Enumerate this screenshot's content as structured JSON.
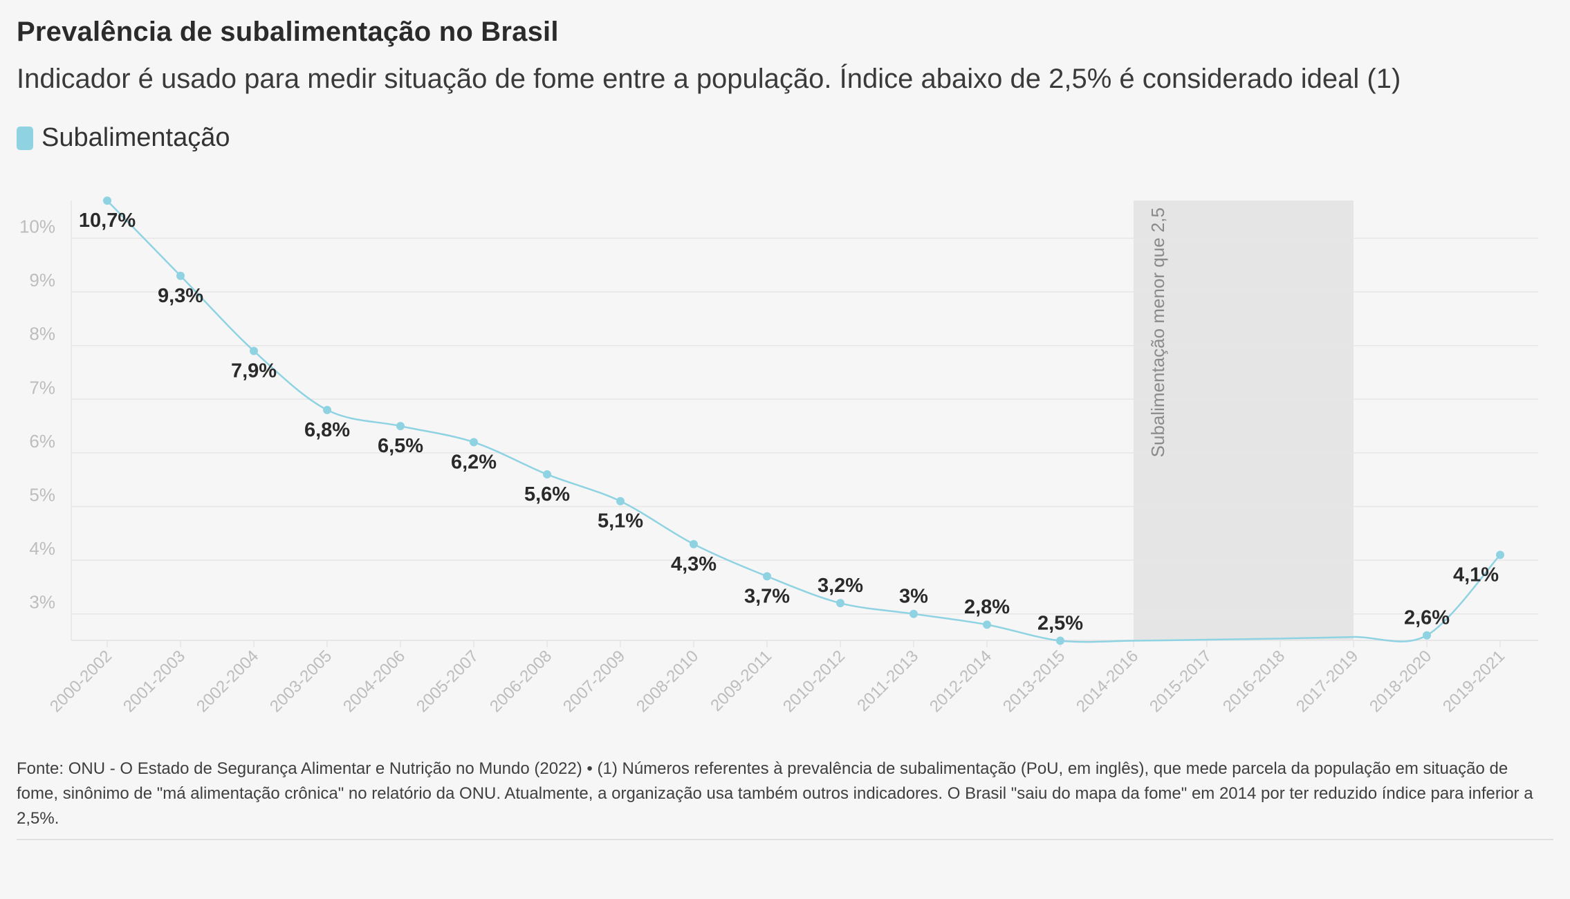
{
  "header": {
    "title": "Prevalência de subalimentação no Brasil",
    "subtitle": "Indicador é usado para medir situação de fome entre a população. Índice abaixo de 2,5% é considerado ideal (1)"
  },
  "colors": {
    "series": "#8fd3e3",
    "band": "#e5e5e5",
    "grid": "#e6e6e6",
    "tick": "#bdbdbd",
    "label": "#2a2a2a"
  },
  "chart_data": {
    "type": "line",
    "title": "Prevalência de subalimentação no Brasil",
    "subtitle": "Indicador é usado para medir situação de fome entre a população. Índice abaixo de 2,5% é considerado ideal (1)",
    "xlabel": "",
    "ylabel": "",
    "categories": [
      "2000-2002",
      "2001-2003",
      "2002-2004",
      "2003-2005",
      "2004-2006",
      "2005-2007",
      "2006-2008",
      "2007-2009",
      "2008-2010",
      "2009-2011",
      "2010-2012",
      "2011-2013",
      "2012-2014",
      "2013-2015",
      "2014-2016",
      "2015-2017",
      "2016-2018",
      "2017-2019",
      "2018-2020",
      "2019-2021"
    ],
    "series": [
      {
        "name": "Subalimentação",
        "values": [
          10.7,
          9.3,
          7.9,
          6.8,
          6.5,
          6.2,
          5.6,
          5.1,
          4.3,
          3.7,
          3.2,
          3.0,
          2.8,
          2.5,
          2.5,
          2.52,
          2.54,
          2.57,
          2.6,
          4.1
        ],
        "point_labels": [
          "10,7%",
          "9,3%",
          "7,9%",
          "6,8%",
          "6,5%",
          "6,2%",
          "5,6%",
          "5,1%",
          "4,3%",
          "3,7%",
          "3,2%",
          "3%",
          "2,8%",
          "2,5%",
          "",
          "",
          "",
          "",
          "2,6%",
          "4,1%"
        ],
        "point_markers": [
          true,
          true,
          true,
          true,
          true,
          true,
          true,
          true,
          true,
          true,
          true,
          true,
          true,
          true,
          false,
          false,
          false,
          false,
          true,
          true
        ]
      }
    ],
    "yticks": [
      3,
      4,
      5,
      6,
      7,
      8,
      9,
      10
    ],
    "ytick_labels": [
      "3%",
      "4%",
      "5%",
      "6%",
      "7%",
      "8%",
      "9%",
      "10%"
    ],
    "ylim": [
      2.5,
      10.7
    ],
    "grid": true,
    "legend": "top-left",
    "annotations": [
      {
        "type": "band",
        "x_start": "2014-2016",
        "x_end": "2017-2019",
        "text": "Subalimentação menor que 2,5"
      }
    ]
  },
  "footer": {
    "source": "Fonte: ONU - O Estado de Segurança Alimentar e Nutrição no Mundo (2022) • (1) Números referentes à prevalência de subalimentação (PoU, em inglês), que mede parcela da população em situação de fome, sinônimo de \"má alimentação crônica\" no relatório da ONU. Atualmente, a organização usa também outros indicadores. O Brasil \"saiu do mapa da fome\" em 2014 por ter reduzido índice para inferior a 2,5%."
  }
}
